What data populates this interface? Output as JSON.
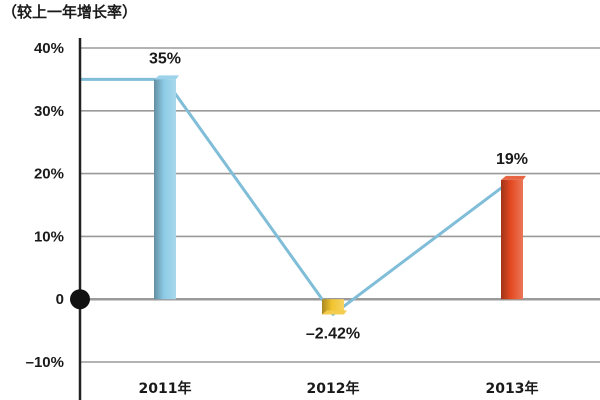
{
  "chart_data": {
    "type": "bar",
    "ylabel": "（较上一年增长率）",
    "categories": [
      "2011年",
      "2012年",
      "2013年"
    ],
    "values": [
      35,
      -2.42,
      19
    ],
    "data_labels": [
      "35%",
      "–2.42%",
      "19%"
    ],
    "series": [
      {
        "values": [
          35,
          -2.42,
          19
        ],
        "colors": [
          "#8ccbe6",
          "#f2c430",
          "#e44a22"
        ]
      }
    ],
    "ylim": [
      -10,
      40
    ],
    "yticks": [
      -10,
      0,
      10,
      20,
      30,
      40
    ],
    "ytick_labels": [
      "–10%",
      "0",
      "10%",
      "20%",
      "30%",
      "40%"
    ],
    "grid": true,
    "line_color": "#7fbdd8",
    "origin_marker_color": "#111111"
  }
}
